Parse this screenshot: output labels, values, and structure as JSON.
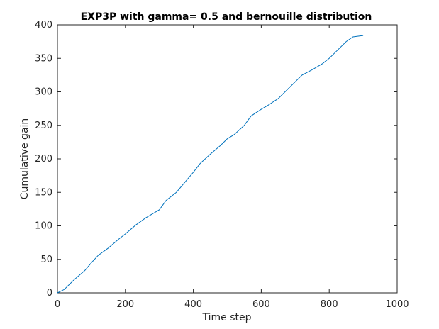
{
  "chart_data": {
    "type": "line",
    "title": "EXP3P with gamma= 0.5 and bernouille distribution",
    "xlabel": "Time step",
    "ylabel": "Cumulative gain",
    "xlim": [
      0,
      1000
    ],
    "ylim": [
      0,
      400
    ],
    "xticks": [
      0,
      200,
      400,
      600,
      800,
      1000
    ],
    "yticks": [
      0,
      50,
      100,
      150,
      200,
      250,
      300,
      350,
      400
    ],
    "grid": false,
    "line_color": "#0072BD",
    "series": [
      {
        "x": [
          0,
          20,
          50,
          80,
          100,
          120,
          150,
          180,
          200,
          230,
          260,
          300,
          320,
          350,
          370,
          400,
          420,
          450,
          480,
          500,
          520,
          550,
          570,
          600,
          620,
          650,
          680,
          700,
          720,
          750,
          780,
          800,
          820,
          850,
          870,
          900
        ],
        "y": [
          0,
          5,
          20,
          33,
          45,
          56,
          67,
          80,
          88,
          101,
          112,
          124,
          138,
          150,
          162,
          180,
          193,
          207,
          220,
          230,
          236,
          250,
          264,
          274,
          280,
          290,
          305,
          315,
          325,
          333,
          342,
          350,
          360,
          375,
          382,
          384
        ]
      }
    ]
  }
}
